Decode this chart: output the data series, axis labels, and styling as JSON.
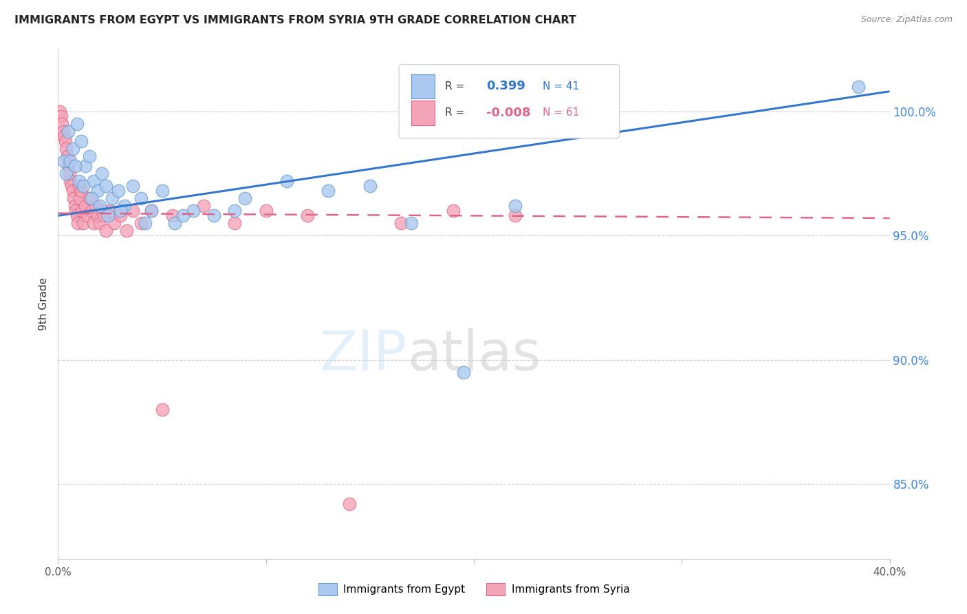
{
  "title": "IMMIGRANTS FROM EGYPT VS IMMIGRANTS FROM SYRIA 9TH GRADE CORRELATION CHART",
  "source": "Source: ZipAtlas.com",
  "ylabel": "9th Grade",
  "xlim": [
    0.0,
    40.0
  ],
  "ylim": [
    82.0,
    102.5
  ],
  "yticks": [
    85.0,
    90.0,
    95.0,
    100.0
  ],
  "ytick_labels_right": [
    "85.0%",
    "90.0%",
    "95.0%",
    "100.0%"
  ],
  "xtick_labels": [
    "0.0%",
    "",
    "",
    "",
    "40.0%"
  ],
  "egypt_color": "#aac8f0",
  "syria_color": "#f4a4b8",
  "egypt_edge": "#6699cc",
  "syria_edge": "#dd6688",
  "egypt_line_color": "#3377cc",
  "syria_line_color": "#dd6688",
  "right_axis_color": "#4488dd",
  "egypt_x": [
    0.3,
    0.5,
    0.7,
    0.9,
    1.1,
    1.3,
    1.5,
    1.7,
    1.9,
    2.1,
    2.3,
    2.6,
    2.9,
    3.2,
    3.6,
    4.0,
    4.5,
    5.0,
    5.6,
    6.5,
    7.5,
    9.0,
    11.0,
    13.0,
    15.0,
    17.0,
    19.5,
    22.0,
    38.5
  ],
  "egypt_y": [
    98.0,
    99.2,
    98.5,
    99.5,
    98.8,
    97.8,
    98.2,
    97.2,
    96.8,
    97.5,
    97.0,
    96.5,
    96.8,
    96.2,
    97.0,
    96.5,
    96.0,
    96.8,
    95.5,
    96.0,
    95.8,
    96.5,
    97.2,
    96.8,
    97.0,
    95.5,
    89.5,
    96.2,
    101.0
  ],
  "egypt_x2": [
    0.4,
    0.6,
    0.8,
    1.0,
    1.2,
    1.6,
    2.0,
    2.4,
    3.0,
    4.2,
    6.0,
    8.5
  ],
  "egypt_y2": [
    97.5,
    98.0,
    97.8,
    97.2,
    97.0,
    96.5,
    96.2,
    95.8,
    96.0,
    95.5,
    95.8,
    96.0
  ],
  "syria_x": [
    0.1,
    0.15,
    0.2,
    0.25,
    0.3,
    0.35,
    0.4,
    0.45,
    0.5,
    0.55,
    0.6,
    0.65,
    0.7,
    0.75,
    0.8,
    0.85,
    0.9,
    0.95,
    1.0,
    1.05,
    1.1,
    1.15,
    1.2,
    1.3,
    1.4,
    1.5,
    1.6,
    1.7,
    1.8,
    1.9,
    2.0,
    2.1,
    2.2,
    2.3,
    2.5,
    2.7,
    3.0,
    3.3,
    3.6,
    4.0,
    4.5,
    5.0,
    5.5,
    7.0,
    8.5,
    10.0,
    12.0,
    14.0,
    16.5,
    19.0,
    22.0
  ],
  "syria_y": [
    100.0,
    99.8,
    99.5,
    99.2,
    99.0,
    98.8,
    98.5,
    98.2,
    97.8,
    97.5,
    97.2,
    97.0,
    96.8,
    96.5,
    96.2,
    96.0,
    95.8,
    95.5,
    97.0,
    96.5,
    96.8,
    96.0,
    95.5,
    96.2,
    95.8,
    96.5,
    96.0,
    95.5,
    96.2,
    95.8,
    95.5,
    96.0,
    95.8,
    95.2,
    96.0,
    95.5,
    95.8,
    95.2,
    96.0,
    95.5,
    96.0,
    88.0,
    95.8,
    96.2,
    95.5,
    96.0,
    95.8,
    84.2,
    95.5,
    96.0,
    95.8
  ],
  "egypt_line_x0": 0.0,
  "egypt_line_y0": 95.8,
  "egypt_line_x1": 40.0,
  "egypt_line_y1": 100.8,
  "syria_line_x0": 0.0,
  "syria_line_y0": 95.9,
  "syria_line_x1": 40.0,
  "syria_line_y1": 95.7
}
